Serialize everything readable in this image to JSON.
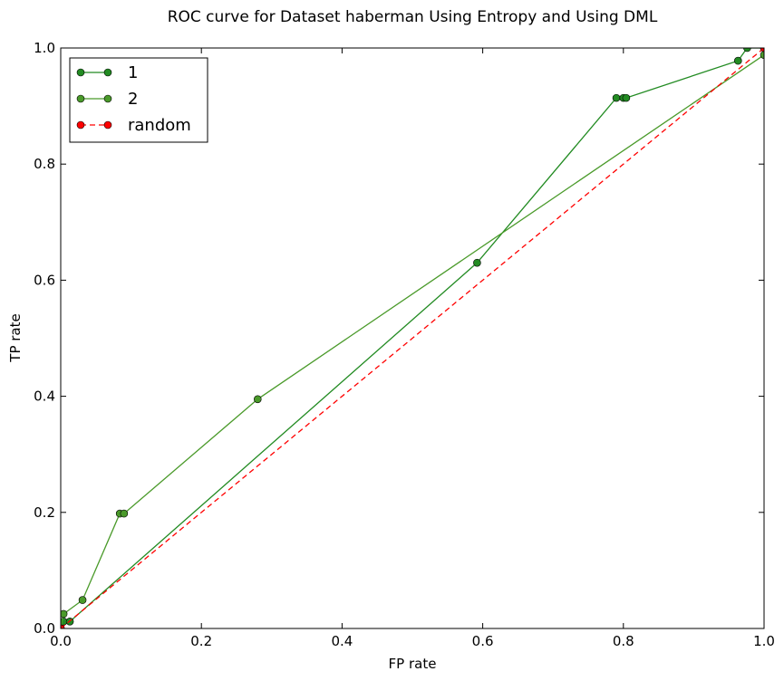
{
  "chart_data": {
    "type": "line",
    "title": "ROC curve for Dataset haberman Using Entropy and Using DML",
    "xlabel": "FP rate",
    "ylabel": "TP rate",
    "xlim": [
      0.0,
      1.0
    ],
    "ylim": [
      0.0,
      1.0
    ],
    "xticks": [
      0.0,
      0.2,
      0.4,
      0.6,
      0.8,
      1.0
    ],
    "yticks": [
      0.0,
      0.2,
      0.4,
      0.6,
      0.8,
      1.0
    ],
    "xtick_labels": [
      "0.0",
      "0.2",
      "0.4",
      "0.6",
      "0.8",
      "1.0"
    ],
    "ytick_labels": [
      "0.0",
      "0.2",
      "0.4",
      "0.6",
      "0.8",
      "1.0"
    ],
    "grid": false,
    "legend": "top-left",
    "series": [
      {
        "name": "1",
        "color": "#228B22",
        "line_style": "solid",
        "marker": "circle",
        "x": [
          0.0,
          0.004,
          0.013,
          0.592,
          0.79,
          0.8,
          0.804,
          0.963,
          0.976,
          1.0
        ],
        "y": [
          0.0,
          0.012,
          0.012,
          0.63,
          0.914,
          0.914,
          0.914,
          0.978,
          1.0,
          1.0
        ]
      },
      {
        "name": "2",
        "color": "#4A9A2A",
        "line_style": "solid",
        "marker": "circle",
        "x": [
          0.0,
          0.004,
          0.031,
          0.084,
          0.09,
          0.28,
          1.0
        ],
        "y": [
          0.0,
          0.025,
          0.049,
          0.198,
          0.198,
          0.395,
          0.988
        ]
      },
      {
        "name": "random",
        "color": "#FF0000",
        "line_style": "dashed",
        "marker": "circle",
        "x": [
          0.0,
          1.0
        ],
        "y": [
          0.0,
          1.0
        ]
      }
    ]
  }
}
